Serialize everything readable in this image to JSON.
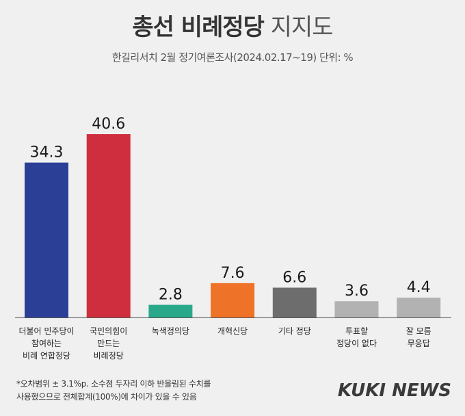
{
  "header": {
    "title_bold": "총선 비례정당",
    "title_light": "지지도",
    "subtitle": "한길리서치 2월 정기여론조사(2024.02.17~19) 단위: %"
  },
  "chart_data": {
    "type": "bar",
    "categories": [
      [
        "더불어 민주당이",
        "참여하는",
        "비례 연합정당"
      ],
      [
        "국민의힘이",
        "만드는",
        "비례정당"
      ],
      [
        "녹색정의당"
      ],
      [
        "개혁신당"
      ],
      [
        "기타 정당"
      ],
      [
        "투표할",
        "정당이 없다"
      ],
      [
        "잘 모름",
        "무응답"
      ]
    ],
    "values": [
      34.3,
      40.6,
      2.8,
      7.6,
      6.6,
      3.6,
      4.4
    ],
    "value_labels": [
      "34.3",
      "40.6",
      "2.8",
      "7.6",
      "6.6",
      "3.6",
      "4.4"
    ],
    "colors": [
      "#2b3f96",
      "#cf2e3e",
      "#2aa88a",
      "#ee7228",
      "#6d6d6d",
      "#b2b2b2",
      "#b2b2b2"
    ],
    "ylim": [
      0,
      45
    ],
    "grid": false,
    "title": "총선 비례정당 지지도"
  },
  "footnote": {
    "line1": "*오차범위 ± 3.1%p. 소수점 두자리 이하 반올림된 수치를",
    "line2": "사용했으므로 전체합계(100%)에 차이가 있을 수 있음"
  },
  "logo": {
    "text": "KUKI NEWS"
  }
}
